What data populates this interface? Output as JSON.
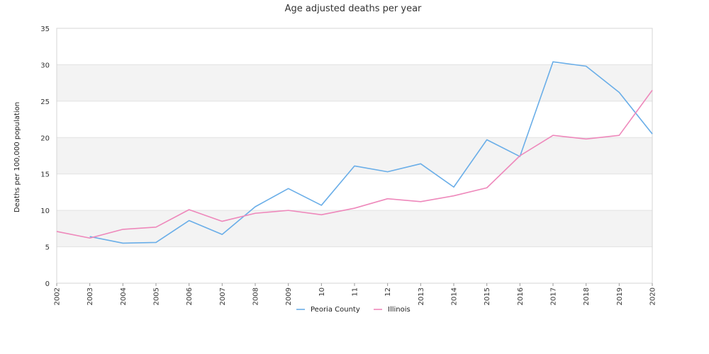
{
  "chart_data": {
    "type": "line",
    "title": "Age adjusted deaths per year",
    "xlabel": "",
    "ylabel": "Deaths per 100,000 population",
    "categories": [
      "2002",
      "2003",
      "2004",
      "2005",
      "2006",
      "2007",
      "2008",
      "2009",
      "10",
      "11",
      "12",
      "2013",
      "2014",
      "2015",
      "2016",
      "2017",
      "2018",
      "2019",
      "2020"
    ],
    "ylim": [
      0,
      35
    ],
    "yticks": [
      "0",
      "5",
      "10",
      "15",
      "20",
      "25",
      "30",
      "35"
    ],
    "grid": "alternating horizontal bands",
    "legend_position": "bottom",
    "series": [
      {
        "name": "Peoria County",
        "color": "#6aaee8",
        "values": [
          null,
          6.4,
          5.5,
          5.6,
          8.6,
          6.7,
          10.5,
          13.0,
          10.7,
          16.1,
          15.3,
          16.4,
          13.2,
          19.7,
          17.4,
          30.4,
          29.8,
          26.2,
          20.5
        ]
      },
      {
        "name": "Illinois",
        "color": "#ee88bb",
        "values": [
          7.1,
          6.2,
          7.4,
          7.7,
          10.1,
          8.5,
          9.6,
          10.0,
          9.4,
          10.3,
          11.6,
          11.2,
          12.0,
          13.1,
          17.5,
          20.3,
          19.8,
          20.3,
          26.5
        ]
      }
    ]
  }
}
